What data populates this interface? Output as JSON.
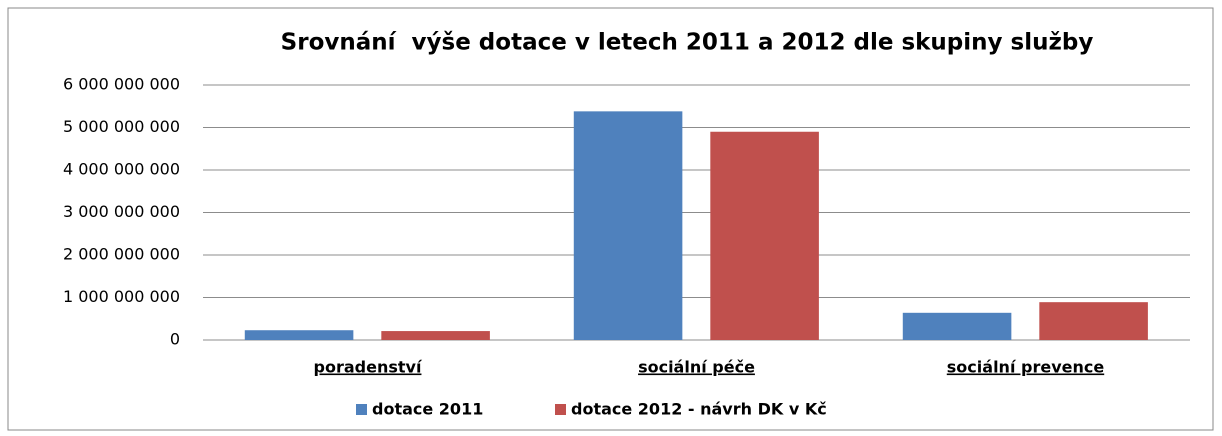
{
  "chart_data": {
    "type": "bar",
    "title": "Srovnání  výše dotace v letech 2011 a 2012 dle skupiny služby",
    "categories": [
      "poradenství",
      "sociální péče",
      "sociální prevence"
    ],
    "series": [
      {
        "name": "dotace 2011",
        "color": "#4f81bd",
        "values": [
          230000000,
          5380000000,
          640000000
        ]
      },
      {
        "name": "dotace 2012 - návrh DK v Kč",
        "color": "#c0504d",
        "values": [
          210000000,
          4900000000,
          890000000
        ]
      }
    ],
    "ylim": [
      0,
      6000000000
    ],
    "yticks": [
      0,
      {
        "value": 1000000000,
        "label": "1 000 000 000"
      },
      {
        "value": 2000000000,
        "label": "2 000 000 000"
      },
      {
        "value": 3000000000,
        "label": "3 000 000 000"
      },
      {
        "value": 4000000000,
        "label": "4 000 000 000"
      },
      {
        "value": 5000000000,
        "label": "5 000 000 000"
      },
      {
        "value": 6000000000,
        "label": "6 000 000 000"
      }
    ],
    "grid": true,
    "legend": "bottom"
  }
}
